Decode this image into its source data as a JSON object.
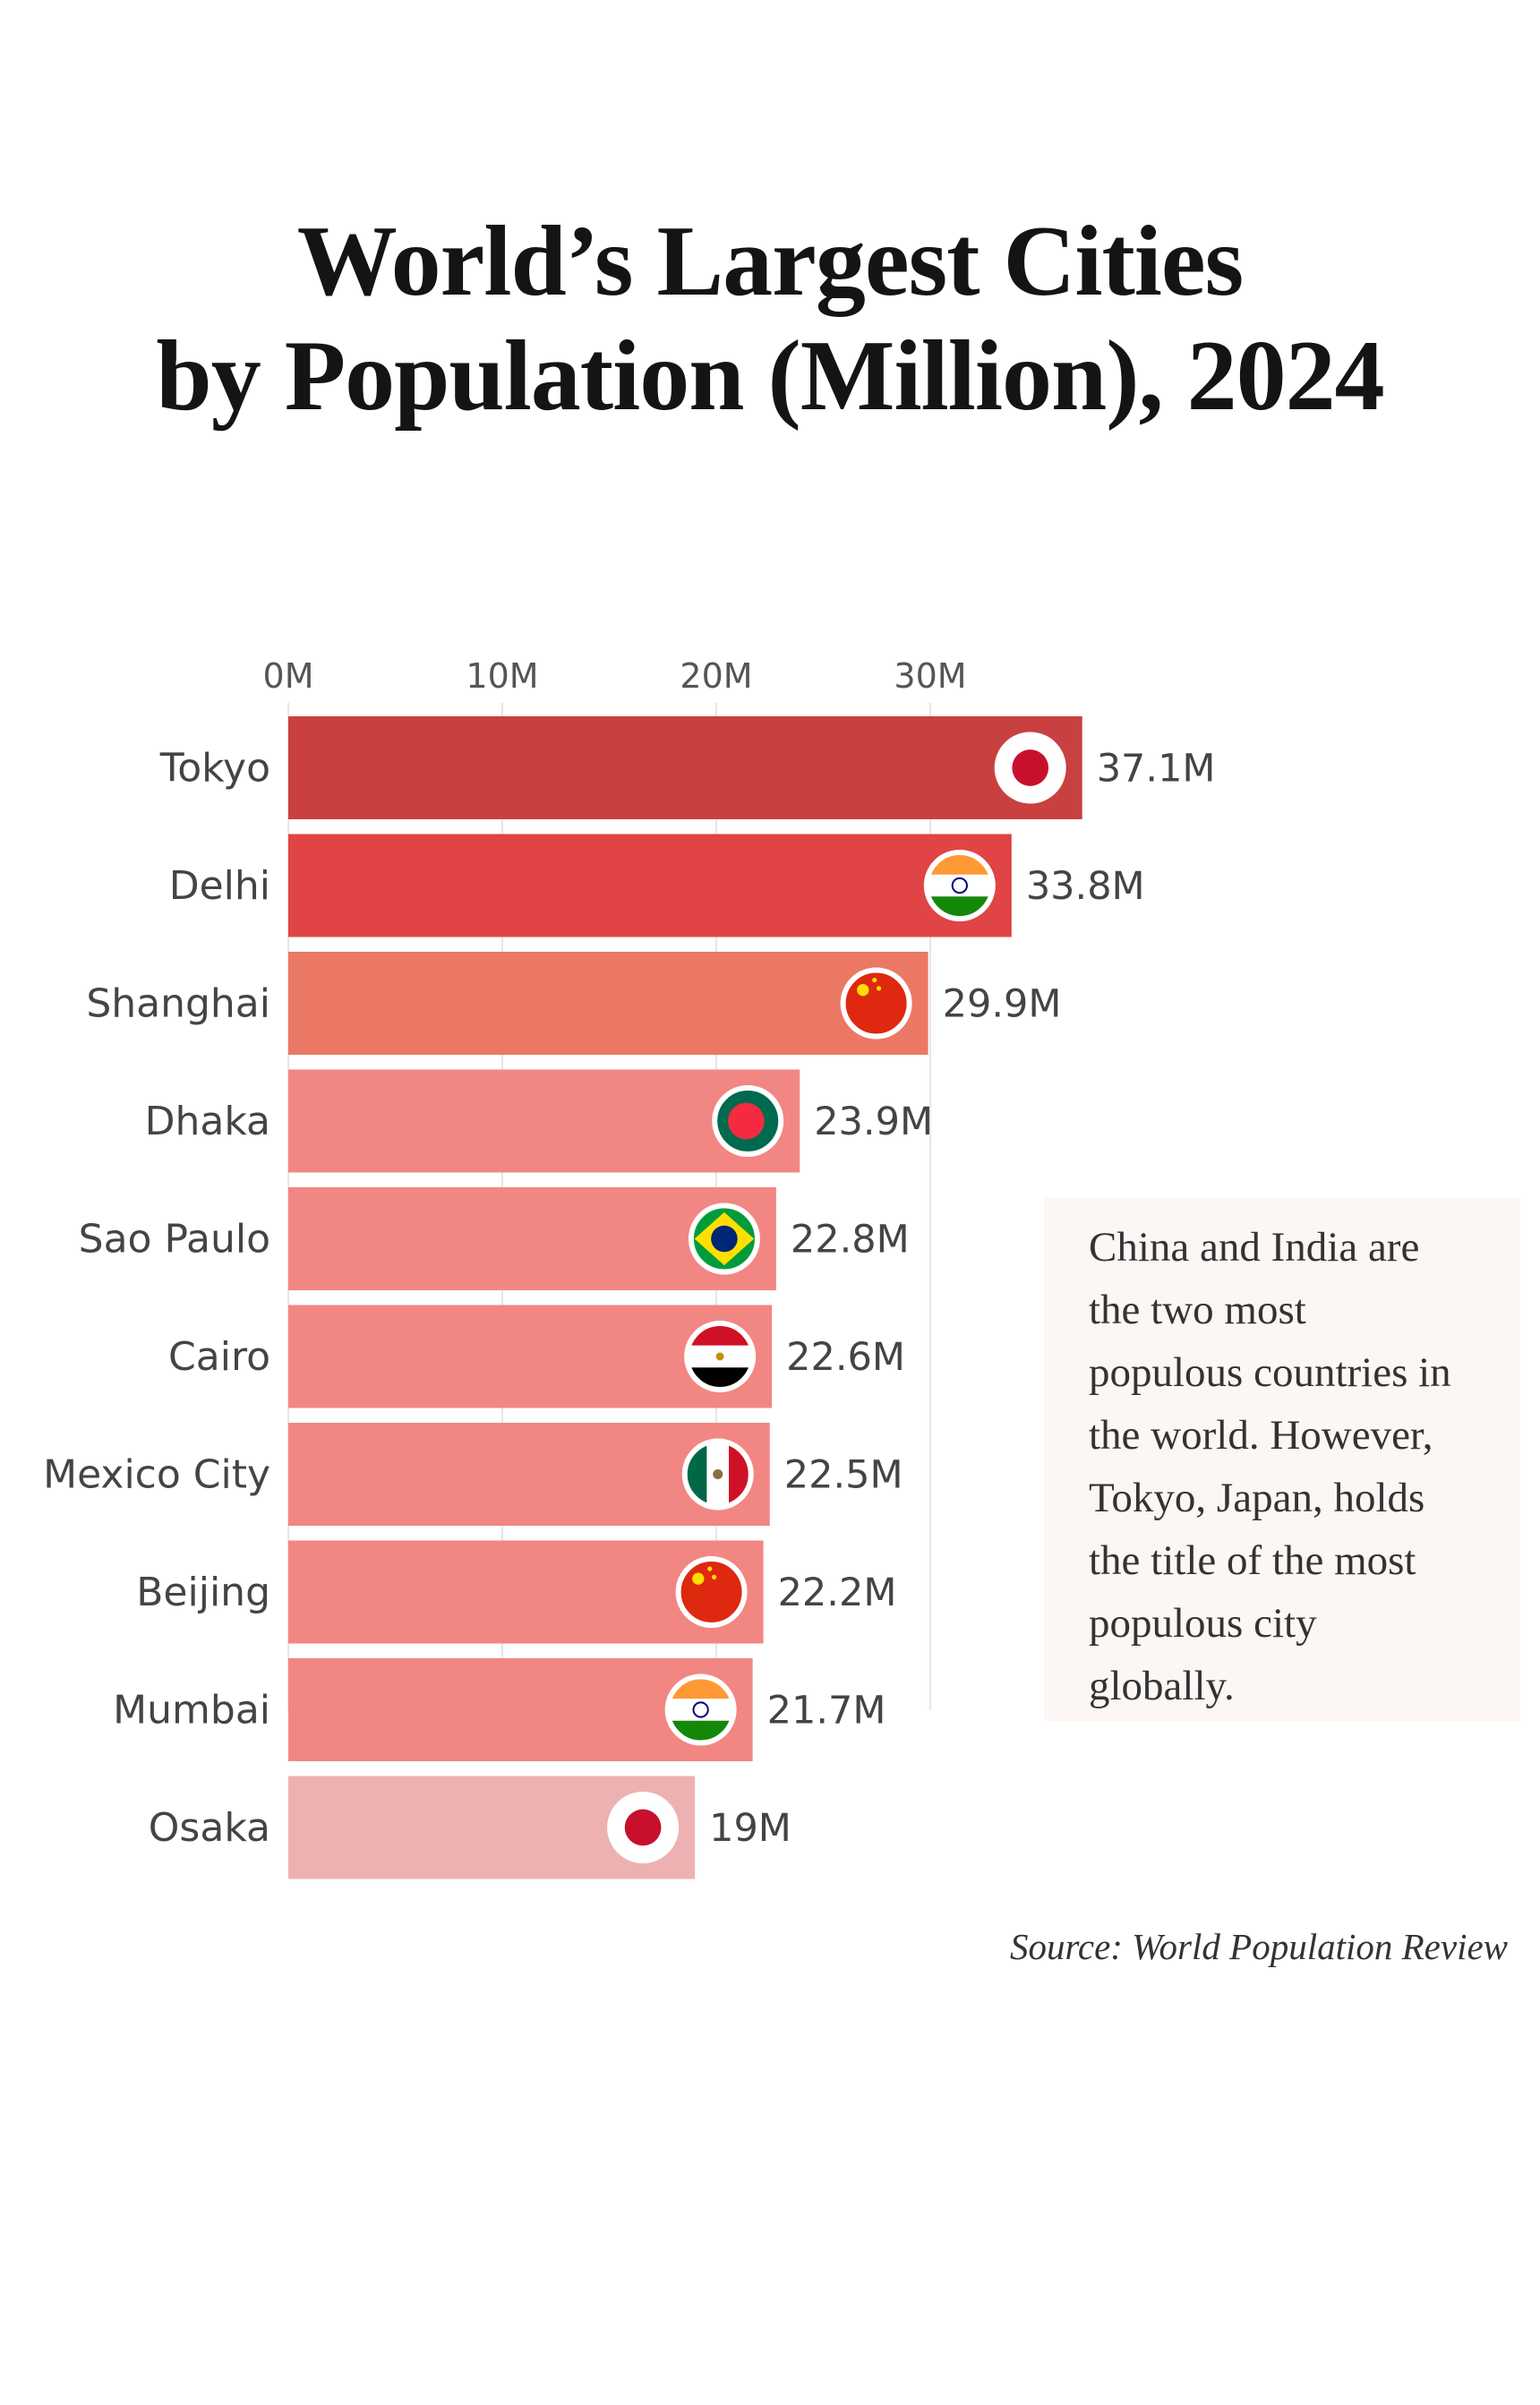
{
  "chart_data": {
    "type": "bar",
    "orientation": "horizontal",
    "title_lines": [
      "World’s Largest Cities",
      "by Population (Million), 2024"
    ],
    "categories": [
      "Tokyo",
      "Delhi",
      "Shanghai",
      "Dhaka",
      "Sao Paulo",
      "Cairo",
      "Mexico City",
      "Beijing",
      "Mumbai",
      "Osaka"
    ],
    "values": [
      37.1,
      33.8,
      29.9,
      23.9,
      22.8,
      22.6,
      22.5,
      22.2,
      21.7,
      19
    ],
    "value_labels": [
      "37.1M",
      "33.8M",
      "29.9M",
      "23.9M",
      "22.8M",
      "22.6M",
      "22.5M",
      "22.2M",
      "21.7M",
      "19M"
    ],
    "flags": [
      "japan-flag",
      "india-flag",
      "china-flag",
      "bangladesh-flag",
      "brazil-flag",
      "egypt-flag",
      "mexico-flag",
      "china-flag",
      "india-flag",
      "japan-flag"
    ],
    "bar_colors": [
      "#c94040",
      "#e04444",
      "#eb7865",
      "#f28683",
      "#f28683",
      "#f28683",
      "#f28683",
      "#f28683",
      "#f28683",
      "#edb1b1"
    ],
    "xaxis": {
      "position": "top",
      "ticks": [
        0,
        10,
        20,
        30
      ],
      "tick_labels": [
        "0M",
        "10M",
        "20M",
        "30M"
      ]
    },
    "xlim": [
      0,
      40
    ],
    "grid": true
  },
  "annotation": "China and India are the two most populous countries in the world. However, Tokyo, Japan, holds the title of the most populous city globally.",
  "annotation_lines": [
    "China and India are",
    "the two most",
    "populous countries in",
    "the world. However,",
    "Tokyo, Japan, holds",
    "the title of the most",
    "populous city",
    "globally."
  ],
  "source": "Source: World Population Review"
}
